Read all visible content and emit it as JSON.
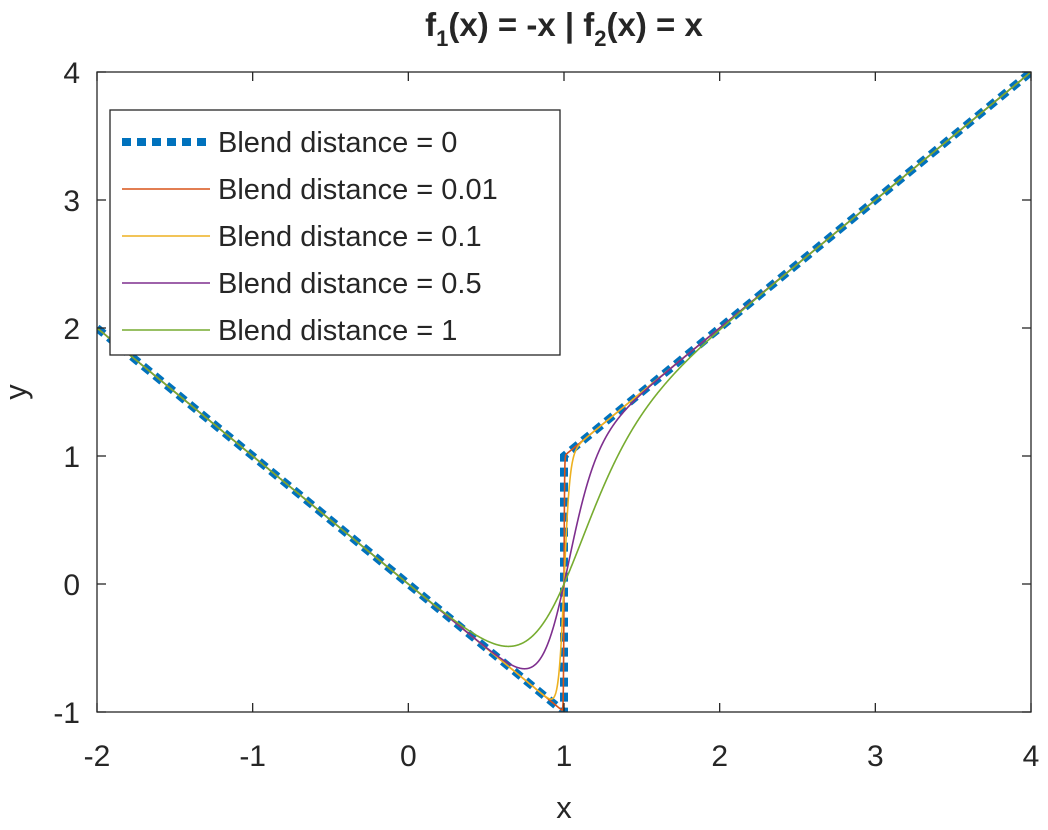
{
  "chart_data": {
    "type": "line",
    "title_parts": {
      "f1_name": "f",
      "f1_sub": "1",
      "f1_expr": "(x) = -x | ",
      "f2_name": "f",
      "f2_sub": "2",
      "f2_expr": "(x) = x"
    },
    "xlabel": "x",
    "ylabel": "y",
    "xlim": [
      -2,
      4
    ],
    "ylim": [
      -1,
      4
    ],
    "xticks": [
      -2,
      -1,
      0,
      1,
      2,
      3,
      4
    ],
    "yticks": [
      -1,
      0,
      1,
      2,
      3,
      4
    ],
    "xtick_labels": [
      "-2",
      "-1",
      "0",
      "1",
      "2",
      "3",
      "4"
    ],
    "ytick_labels": [
      "-1",
      "0",
      "1",
      "2",
      "3",
      "4"
    ],
    "threshold": 1,
    "grid": false,
    "legend_position": "top-left",
    "series": [
      {
        "name": "Blend distance = 0",
        "blend_distance": 0,
        "color": "#0072BD",
        "style": "dotted-thick"
      },
      {
        "name": "Blend distance = 0.01",
        "blend_distance": 0.01,
        "color": "#D95319",
        "style": "solid"
      },
      {
        "name": "Blend distance = 0.1",
        "blend_distance": 0.1,
        "color": "#EDB120",
        "style": "solid"
      },
      {
        "name": "Blend distance = 0.5",
        "blend_distance": 0.5,
        "color": "#7E2F8E",
        "style": "solid"
      },
      {
        "name": "Blend distance = 1",
        "blend_distance": 1,
        "color": "#77AC30",
        "style": "solid"
      }
    ]
  }
}
